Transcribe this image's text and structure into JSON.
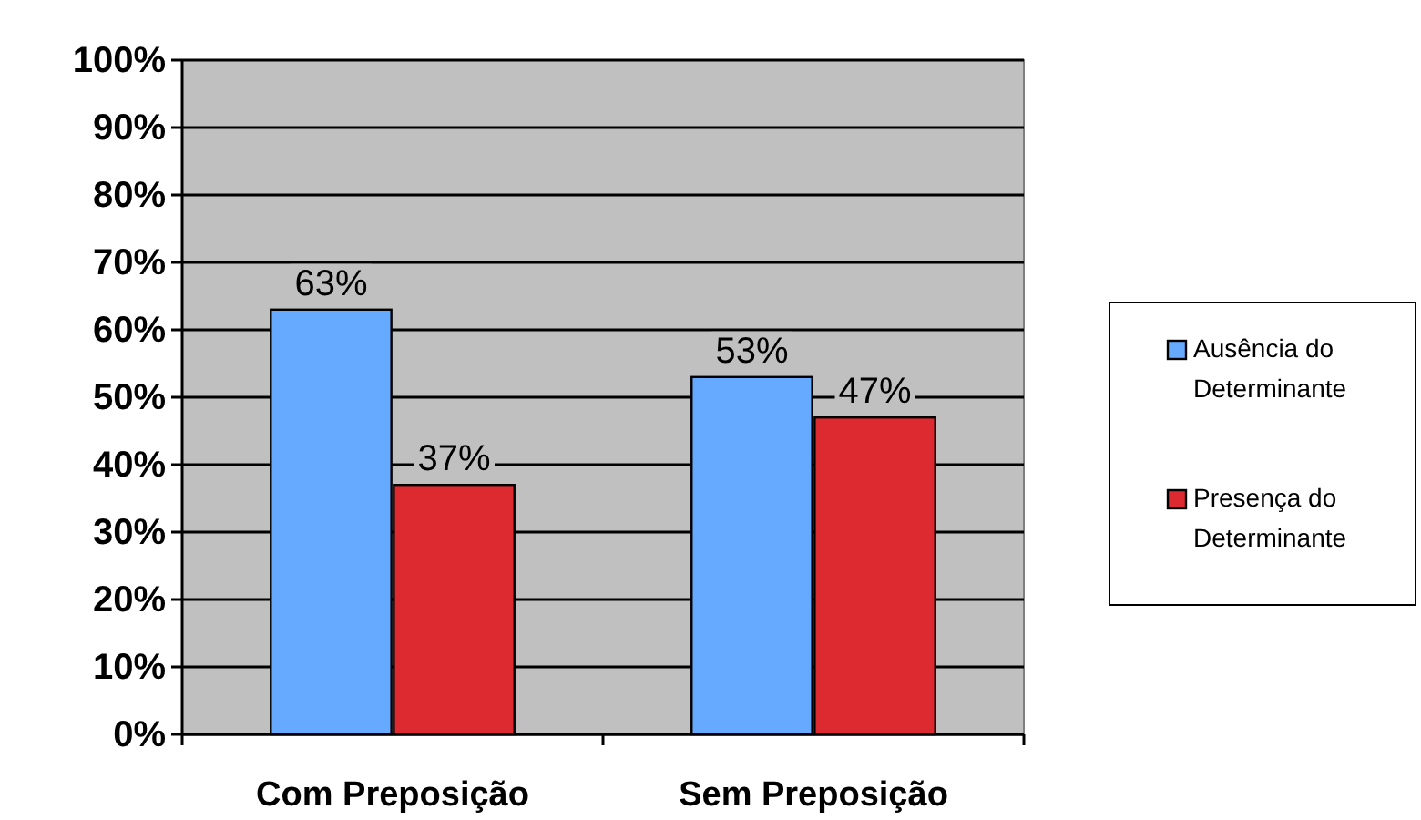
{
  "chart_data": {
    "type": "bar",
    "categories": [
      "Com Preposição",
      "Sem Preposição"
    ],
    "series": [
      {
        "name": "Ausência do Determinante",
        "color": "#66aaff",
        "values": [
          63,
          53
        ],
        "value_labels": [
          "63%",
          "53%"
        ]
      },
      {
        "name": "Presença do Determinante",
        "color": "#dd2a30",
        "values": [
          37,
          47
        ],
        "value_labels": [
          "37%",
          "47%"
        ]
      }
    ],
    "ylim": [
      0,
      100
    ],
    "yticks": [
      {
        "value": 0,
        "label": "0%"
      },
      {
        "value": 10,
        "label": "10%"
      },
      {
        "value": 20,
        "label": "20%"
      },
      {
        "value": 30,
        "label": "30%"
      },
      {
        "value": 40,
        "label": "40%"
      },
      {
        "value": 50,
        "label": "50%"
      },
      {
        "value": 60,
        "label": "60%"
      },
      {
        "value": 70,
        "label": "70%"
      },
      {
        "value": 80,
        "label": "80%"
      },
      {
        "value": 90,
        "label": "90%"
      },
      {
        "value": 100,
        "label": "100%"
      }
    ],
    "grid": "y",
    "legend": "right"
  }
}
